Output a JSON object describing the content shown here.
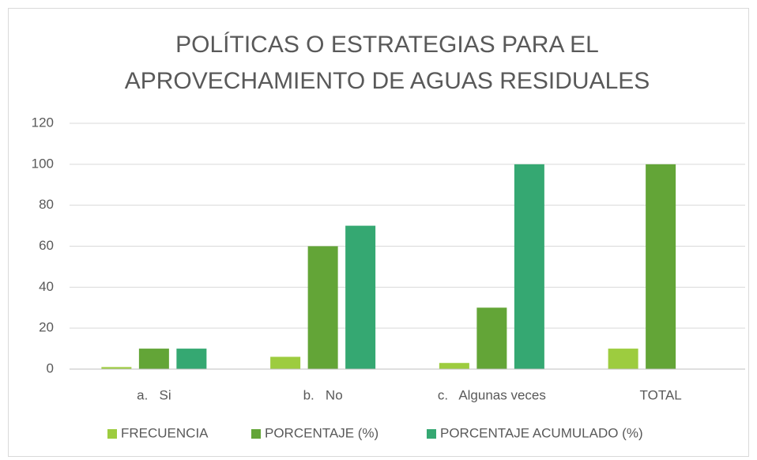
{
  "chart_data": {
    "type": "bar",
    "title": [
      "POLÍTICAS O ESTRATEGIAS PARA EL",
      "APROVECHAMIENTO DE AGUAS RESIDUALES"
    ],
    "categories": [
      "a.   Si",
      "b.   No",
      "c.   Algunas veces",
      "TOTAL"
    ],
    "series": [
      {
        "name": "FRECUENCIA",
        "color": "#9dcc3f",
        "values": [
          1,
          6,
          3,
          10
        ]
      },
      {
        "name": "PORCENTAJE (%)",
        "color": "#63a537",
        "values": [
          10,
          60,
          30,
          100
        ]
      },
      {
        "name": "PORCENTAJE ACUMULADO (%)",
        "color": "#35a872",
        "values": [
          10,
          70,
          100,
          null
        ]
      }
    ],
    "ylim": [
      0,
      120
    ],
    "yticks": [
      0,
      20,
      40,
      60,
      80,
      100,
      120
    ],
    "grid": true,
    "legend": "bottom"
  }
}
